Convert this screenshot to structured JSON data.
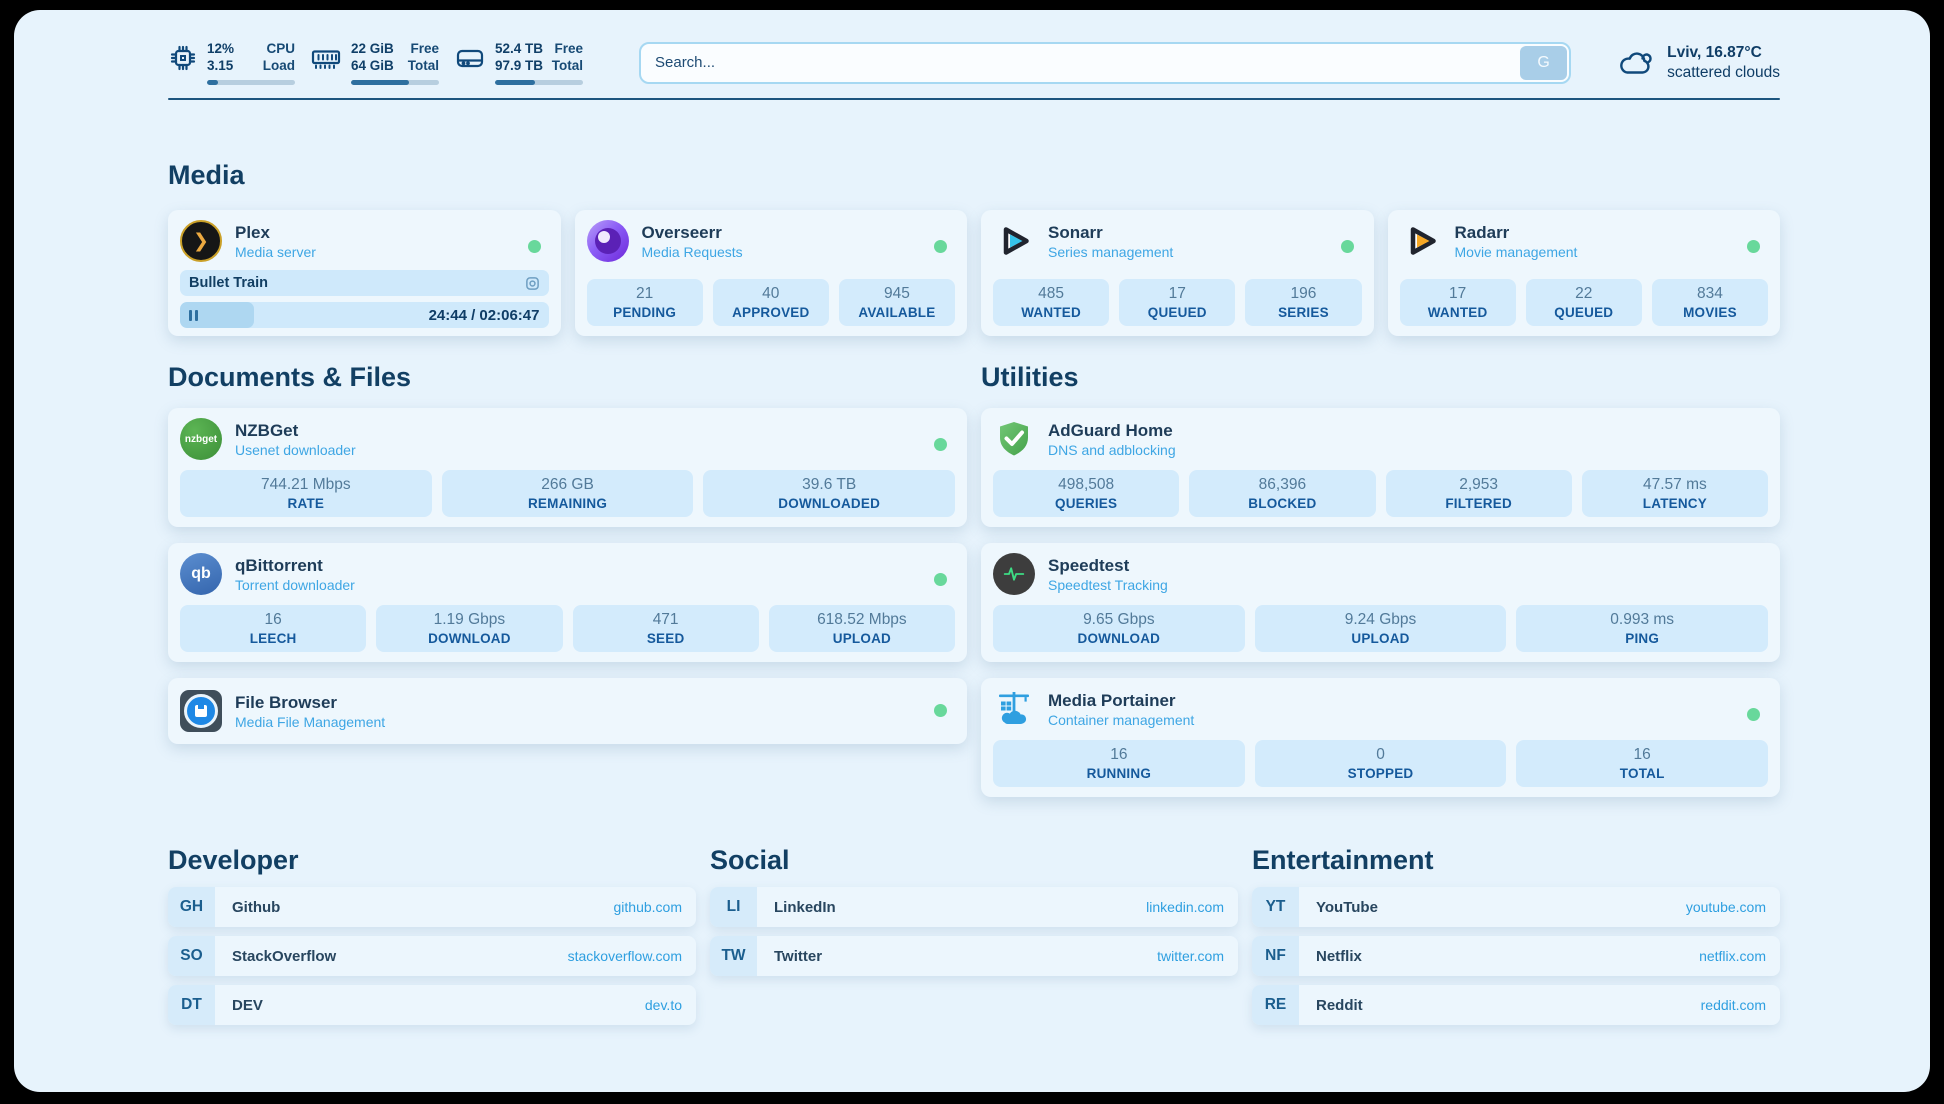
{
  "header": {
    "monitors": [
      {
        "icon": "cpu-icon",
        "value_top": "12%",
        "value_bottom": "3.15",
        "label_top": "CPU",
        "label_bottom": "Load",
        "progress": 12
      },
      {
        "icon": "memory-icon",
        "value_top": "22 GiB",
        "value_bottom": "64 GiB",
        "label_top": "Free",
        "label_bottom": "Total",
        "progress": 66
      },
      {
        "icon": "storage-icon",
        "value_top": "52.4 TB",
        "value_bottom": "97.9 TB",
        "label_top": "Free",
        "label_bottom": "Total",
        "progress": 46
      }
    ],
    "search": {
      "placeholder": "Search...",
      "button_label": "G"
    },
    "weather": {
      "location_temp": "Lviv, 16.87°C",
      "condition": "scattered clouds"
    }
  },
  "sections": {
    "media": "Media",
    "documents": "Documents & Files",
    "utilities": "Utilities",
    "developer": "Developer",
    "social": "Social",
    "entertainment": "Entertainment"
  },
  "apps": {
    "plex": {
      "title": "Plex",
      "subtitle": "Media server",
      "now_playing": {
        "title": "Bullet Train",
        "time_display": "24:44 / 02:06:47",
        "progress": 20
      }
    },
    "overseerr": {
      "title": "Overseerr",
      "subtitle": "Media Requests",
      "stats": [
        {
          "value": "21",
          "label": "PENDING"
        },
        {
          "value": "40",
          "label": "APPROVED"
        },
        {
          "value": "945",
          "label": "AVAILABLE"
        }
      ]
    },
    "sonarr": {
      "title": "Sonarr",
      "subtitle": "Series management",
      "stats": [
        {
          "value": "485",
          "label": "WANTED"
        },
        {
          "value": "17",
          "label": "QUEUED"
        },
        {
          "value": "196",
          "label": "SERIES"
        }
      ]
    },
    "radarr": {
      "title": "Radarr",
      "subtitle": "Movie management",
      "stats": [
        {
          "value": "17",
          "label": "WANTED"
        },
        {
          "value": "22",
          "label": "QUEUED"
        },
        {
          "value": "834",
          "label": "MOVIES"
        }
      ]
    },
    "nzbget": {
      "title": "NZBGet",
      "subtitle": "Usenet downloader",
      "icon_text": "nzbget",
      "stats": [
        {
          "value": "744.21 Mbps",
          "label": "RATE"
        },
        {
          "value": "266 GB",
          "label": "REMAINING"
        },
        {
          "value": "39.6 TB",
          "label": "DOWNLOADED"
        }
      ]
    },
    "qbittorrent": {
      "title": "qBittorrent",
      "subtitle": "Torrent downloader",
      "icon_text": "qb",
      "stats": [
        {
          "value": "16",
          "label": "LEECH"
        },
        {
          "value": "1.19 Gbps",
          "label": "DOWNLOAD"
        },
        {
          "value": "471",
          "label": "SEED"
        },
        {
          "value": "618.52 Mbps",
          "label": "UPLOAD"
        }
      ]
    },
    "filebrowser": {
      "title": "File Browser",
      "subtitle": "Media File Management"
    },
    "adguard": {
      "title": "AdGuard Home",
      "subtitle": "DNS and adblocking",
      "stats": [
        {
          "value": "498,508",
          "label": "QUERIES"
        },
        {
          "value": "86,396",
          "label": "BLOCKED"
        },
        {
          "value": "2,953",
          "label": "FILTERED"
        },
        {
          "value": "47.57 ms",
          "label": "LATENCY"
        }
      ]
    },
    "speedtest": {
      "title": "Speedtest",
      "subtitle": "Speedtest Tracking",
      "stats": [
        {
          "value": "9.65 Gbps",
          "label": "DOWNLOAD"
        },
        {
          "value": "9.24 Gbps",
          "label": "UPLOAD"
        },
        {
          "value": "0.993 ms",
          "label": "PING"
        }
      ]
    },
    "portainer": {
      "title": "Media Portainer",
      "subtitle": "Container management",
      "stats": [
        {
          "value": "16",
          "label": "RUNNING"
        },
        {
          "value": "0",
          "label": "STOPPED"
        },
        {
          "value": "16",
          "label": "TOTAL"
        }
      ]
    }
  },
  "bookmarks": {
    "developer": [
      {
        "abbr": "GH",
        "name": "Github",
        "url": "github.com"
      },
      {
        "abbr": "SO",
        "name": "StackOverflow",
        "url": "stackoverflow.com"
      },
      {
        "abbr": "DT",
        "name": "DEV",
        "url": "dev.to"
      }
    ],
    "social": [
      {
        "abbr": "LI",
        "name": "LinkedIn",
        "url": "linkedin.com"
      },
      {
        "abbr": "TW",
        "name": "Twitter",
        "url": "twitter.com"
      }
    ],
    "entertainment": [
      {
        "abbr": "YT",
        "name": "YouTube",
        "url": "youtube.com"
      },
      {
        "abbr": "NF",
        "name": "Netflix",
        "url": "netflix.com"
      },
      {
        "abbr": "RE",
        "name": "Reddit",
        "url": "reddit.com"
      }
    ]
  },
  "colors": {
    "accent": "#2e9fe0",
    "status_online": "#68d89b",
    "label_blue": "#15599c"
  }
}
